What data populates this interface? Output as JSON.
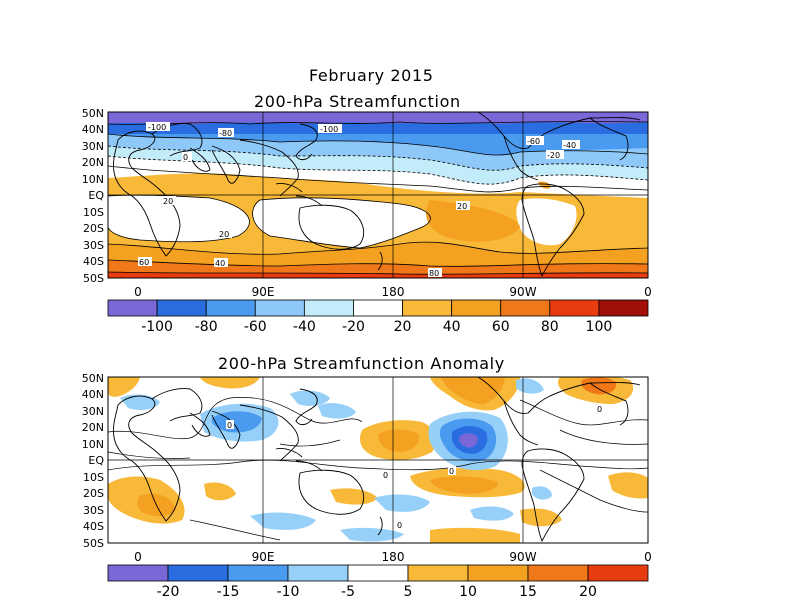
{
  "titles": {
    "main": "February 2015",
    "top_map": "200-hPa Streamfunction",
    "bottom_map": "200-hPa Streamfunction Anomaly"
  },
  "axes": {
    "lat_labels": [
      "50N",
      "40N",
      "30N",
      "20N",
      "10N",
      "EQ",
      "10S",
      "20S",
      "30S",
      "40S",
      "50S"
    ],
    "lon_labels": [
      "0",
      "90E",
      "180",
      "90W",
      "0"
    ]
  },
  "top_map": {
    "colorbar_labels": [
      "-100",
      "-80",
      "-60",
      "-40",
      "-20",
      "20",
      "40",
      "60",
      "80",
      "100"
    ],
    "colorbar_colors": [
      "#7b68d8",
      "#2a6de0",
      "#4a9af0",
      "#8ec8f8",
      "#c2ecfa",
      "#ffffff",
      "#f8b838",
      "#f4a020",
      "#f07818",
      "#e83c10",
      "#a01008"
    ],
    "contour_labels": [
      "-100",
      "-80",
      "-100",
      "-60",
      "-40",
      "-20",
      "0",
      "20",
      "20",
      "20",
      "40",
      "60",
      "80"
    ]
  },
  "bottom_map": {
    "colorbar_labels": [
      "-20",
      "-15",
      "-10",
      "-5",
      "5",
      "10",
      "15",
      "20"
    ],
    "colorbar_colors": [
      "#7b68d8",
      "#2a6de0",
      "#4a9af0",
      "#96d0f8",
      "#ffffff",
      "#f8b838",
      "#f4a020",
      "#f07818",
      "#e83c10"
    ],
    "contour_labels": [
      "0",
      "0",
      "0",
      "0",
      "0"
    ]
  },
  "colors": {
    "ocean_text": "#000000",
    "frame": "#000000"
  }
}
